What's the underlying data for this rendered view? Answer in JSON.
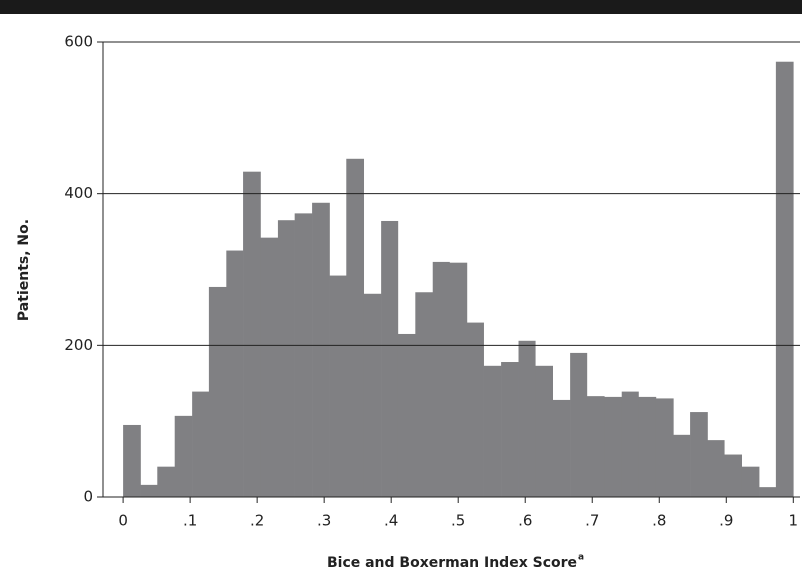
{
  "chart_data": {
    "type": "histogram",
    "x_label": "Bice and Boxerman Index Score",
    "x_label_note": "a",
    "y_label": "Patients, No.",
    "bins": [
      0,
      0.026,
      0.051,
      0.077,
      0.103,
      0.128,
      0.154,
      0.179,
      0.205,
      0.231,
      0.256,
      0.282,
      0.308,
      0.333,
      0.359,
      0.385,
      0.41,
      0.436,
      0.462,
      0.487,
      0.513,
      0.538,
      0.564,
      0.59,
      0.615,
      0.641,
      0.667,
      0.692,
      0.718,
      0.744,
      0.769,
      0.795,
      0.821,
      0.846,
      0.872,
      0.897,
      0.923,
      0.949,
      0.974,
      1
    ],
    "values": [
      95,
      16,
      40,
      107,
      139,
      277,
      325,
      429,
      342,
      365,
      374,
      388,
      292,
      446,
      268,
      364,
      215,
      270,
      310,
      309,
      230,
      173,
      178,
      206,
      173,
      128,
      190,
      133,
      132,
      139,
      132,
      130,
      82,
      112,
      75,
      56,
      40,
      13,
      574
    ],
    "color": "#808083",
    "xlim": [
      -0.03,
      1.01
    ],
    "ylim": [
      0,
      600
    ],
    "xticks": [
      0,
      {
        "value": 0.1,
        "label": ".1"
      },
      {
        "value": 0.2,
        "label": ".2"
      },
      {
        "value": 0.3,
        "label": ".3"
      },
      {
        "value": 0.4,
        "label": ".4"
      },
      {
        "value": 0.5,
        "label": ".5"
      },
      {
        "value": 0.6,
        "label": ".6"
      },
      {
        "value": 0.7,
        "label": ".7"
      },
      {
        "value": 0.8,
        "label": ".8"
      },
      {
        "value": 0.9,
        "label": ".9"
      },
      1
    ],
    "yticks": [
      0,
      200,
      400,
      600
    ],
    "grid": true
  }
}
